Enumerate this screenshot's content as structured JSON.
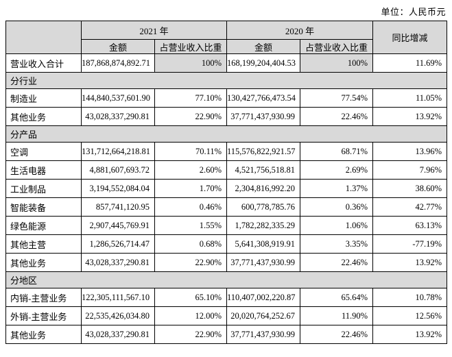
{
  "unit_note": "单位：人民币元",
  "table": {
    "header": {
      "year_2021": "2021 年",
      "year_2020": "2020 年",
      "amount": "金额",
      "share": "占营业收入比重",
      "yoy": "同比增减"
    },
    "rows": [
      {
        "label": "营业收入合计",
        "amount_2021": "187,868,874,892.71",
        "share_2021": "100%",
        "amount_2020": "168,199,204,404.53",
        "share_2020": "100%",
        "yoy": "11.69%",
        "shaded_share": true
      },
      {
        "section": "分行业"
      },
      {
        "label": "制造业",
        "amount_2021": "144,840,537,601.90",
        "share_2021": "77.10%",
        "amount_2020": "130,427,766,473.54",
        "share_2020": "77.54%",
        "yoy": "11.05%"
      },
      {
        "label": "其他业务",
        "amount_2021": "43,028,337,290.81",
        "share_2021": "22.90%",
        "amount_2020": "37,771,437,930.99",
        "share_2020": "22.46%",
        "yoy": "13.92%"
      },
      {
        "section": "分产品"
      },
      {
        "label": "空调",
        "amount_2021": "131,712,664,218.81",
        "share_2021": "70.11%",
        "amount_2020": "115,576,822,921.57",
        "share_2020": "68.71%",
        "yoy": "13.96%"
      },
      {
        "label": "生活电器",
        "amount_2021": "4,881,607,693.72",
        "share_2021": "2.60%",
        "amount_2020": "4,521,756,518.81",
        "share_2020": "2.69%",
        "yoy": "7.96%"
      },
      {
        "label": "工业制品",
        "amount_2021": "3,194,552,084.04",
        "share_2021": "1.70%",
        "amount_2020": "2,304,816,992.20",
        "share_2020": "1.37%",
        "yoy": "38.60%"
      },
      {
        "label": "智能装备",
        "amount_2021": "857,741,120.95",
        "share_2021": "0.46%",
        "amount_2020": "600,778,785.76",
        "share_2020": "0.36%",
        "yoy": "42.77%"
      },
      {
        "label": "绿色能源",
        "amount_2021": "2,907,445,769.91",
        "share_2021": "1.55%",
        "amount_2020": "1,782,282,335.29",
        "share_2020": "1.06%",
        "yoy": "63.13%"
      },
      {
        "label": "其他主营",
        "amount_2021": "1,286,526,714.47",
        "share_2021": "0.68%",
        "amount_2020": "5,641,308,919.91",
        "share_2020": "3.35%",
        "yoy": "-77.19%"
      },
      {
        "label": "其他业务",
        "amount_2021": "43,028,337,290.81",
        "share_2021": "22.90%",
        "amount_2020": "37,771,437,930.99",
        "share_2020": "22.46%",
        "yoy": "13.92%"
      },
      {
        "section": "分地区"
      },
      {
        "label": "内销-主营业务",
        "amount_2021": "122,305,111,567.10",
        "share_2021": "65.10%",
        "amount_2020": "110,407,002,220.87",
        "share_2020": "65.64%",
        "yoy": "10.78%"
      },
      {
        "label": "外销-主营业务",
        "amount_2021": "22,535,426,034.80",
        "share_2021": "12.00%",
        "amount_2020": "20,020,764,252.67",
        "share_2020": "11.90%",
        "yoy": "12.56%"
      },
      {
        "label": "其他业务",
        "amount_2021": "43,028,337,290.81",
        "share_2021": "22.90%",
        "amount_2020": "37,771,437,930.99",
        "share_2020": "22.46%",
        "yoy": "13.92%"
      }
    ]
  }
}
